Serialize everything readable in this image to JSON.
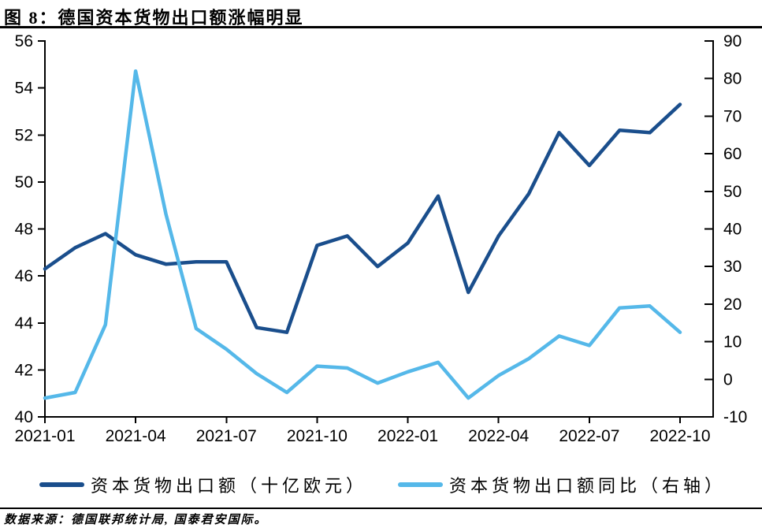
{
  "header": {
    "title": "图 8：德国资本货物出口额涨幅明显"
  },
  "footer": {
    "source": "数据来源：德国联邦统计局, 国泰君安国际。"
  },
  "colors": {
    "dark_blue": "#1A4E8C",
    "light_blue": "#55B8E9",
    "axis": "#000000"
  },
  "legend": [
    {
      "label": "资本货物出口额（十亿欧元）",
      "color": "#1A4E8C"
    },
    {
      "label": "资本货物出口额同比（右轴）",
      "color": "#55B8E9"
    }
  ],
  "chart_data": {
    "type": "line",
    "title": "图 8：德国资本货物出口额涨幅明显",
    "x": [
      "2021-01",
      "2021-02",
      "2021-03",
      "2021-04",
      "2021-05",
      "2021-06",
      "2021-07",
      "2021-08",
      "2021-09",
      "2021-10",
      "2021-11",
      "2021-12",
      "2022-01",
      "2022-02",
      "2022-03",
      "2022-04",
      "2022-05",
      "2022-06",
      "2022-07",
      "2022-08",
      "2022-09",
      "2022-10"
    ],
    "x_tick_labels": [
      "2021-01",
      "2021-04",
      "2021-07",
      "2021-10",
      "2022-01",
      "2022-04",
      "2022-07",
      "2022-10"
    ],
    "x_tick_step": 3,
    "series": [
      {
        "name": "资本货物出口额（十亿欧元）",
        "axis": "left",
        "color": "#1A4E8C",
        "values": [
          46.3,
          47.2,
          47.8,
          46.9,
          46.5,
          46.6,
          46.6,
          43.8,
          43.6,
          47.3,
          47.7,
          46.4,
          47.4,
          49.4,
          45.3,
          47.7,
          49.5,
          52.1,
          50.7,
          52.2,
          52.1,
          53.3
        ]
      },
      {
        "name": "资本货物出口额同比（右轴）",
        "axis": "right",
        "color": "#55B8E9",
        "values": [
          -5,
          -3.5,
          14.5,
          82,
          44,
          13.5,
          8,
          1.5,
          -3.5,
          3.5,
          3,
          -1,
          2,
          4.5,
          -5,
          1,
          5.5,
          11.5,
          9,
          19,
          19.5,
          12.5
        ]
      }
    ],
    "left_axis": {
      "min": 40,
      "max": 56,
      "ticks": [
        56,
        54,
        52,
        50,
        48,
        46,
        44,
        42,
        40
      ]
    },
    "right_axis": {
      "min": -10,
      "max": 90,
      "ticks": [
        90,
        80,
        70,
        60,
        50,
        40,
        30,
        20,
        10,
        0,
        -10
      ]
    },
    "grid": false,
    "legend_position": "bottom"
  }
}
